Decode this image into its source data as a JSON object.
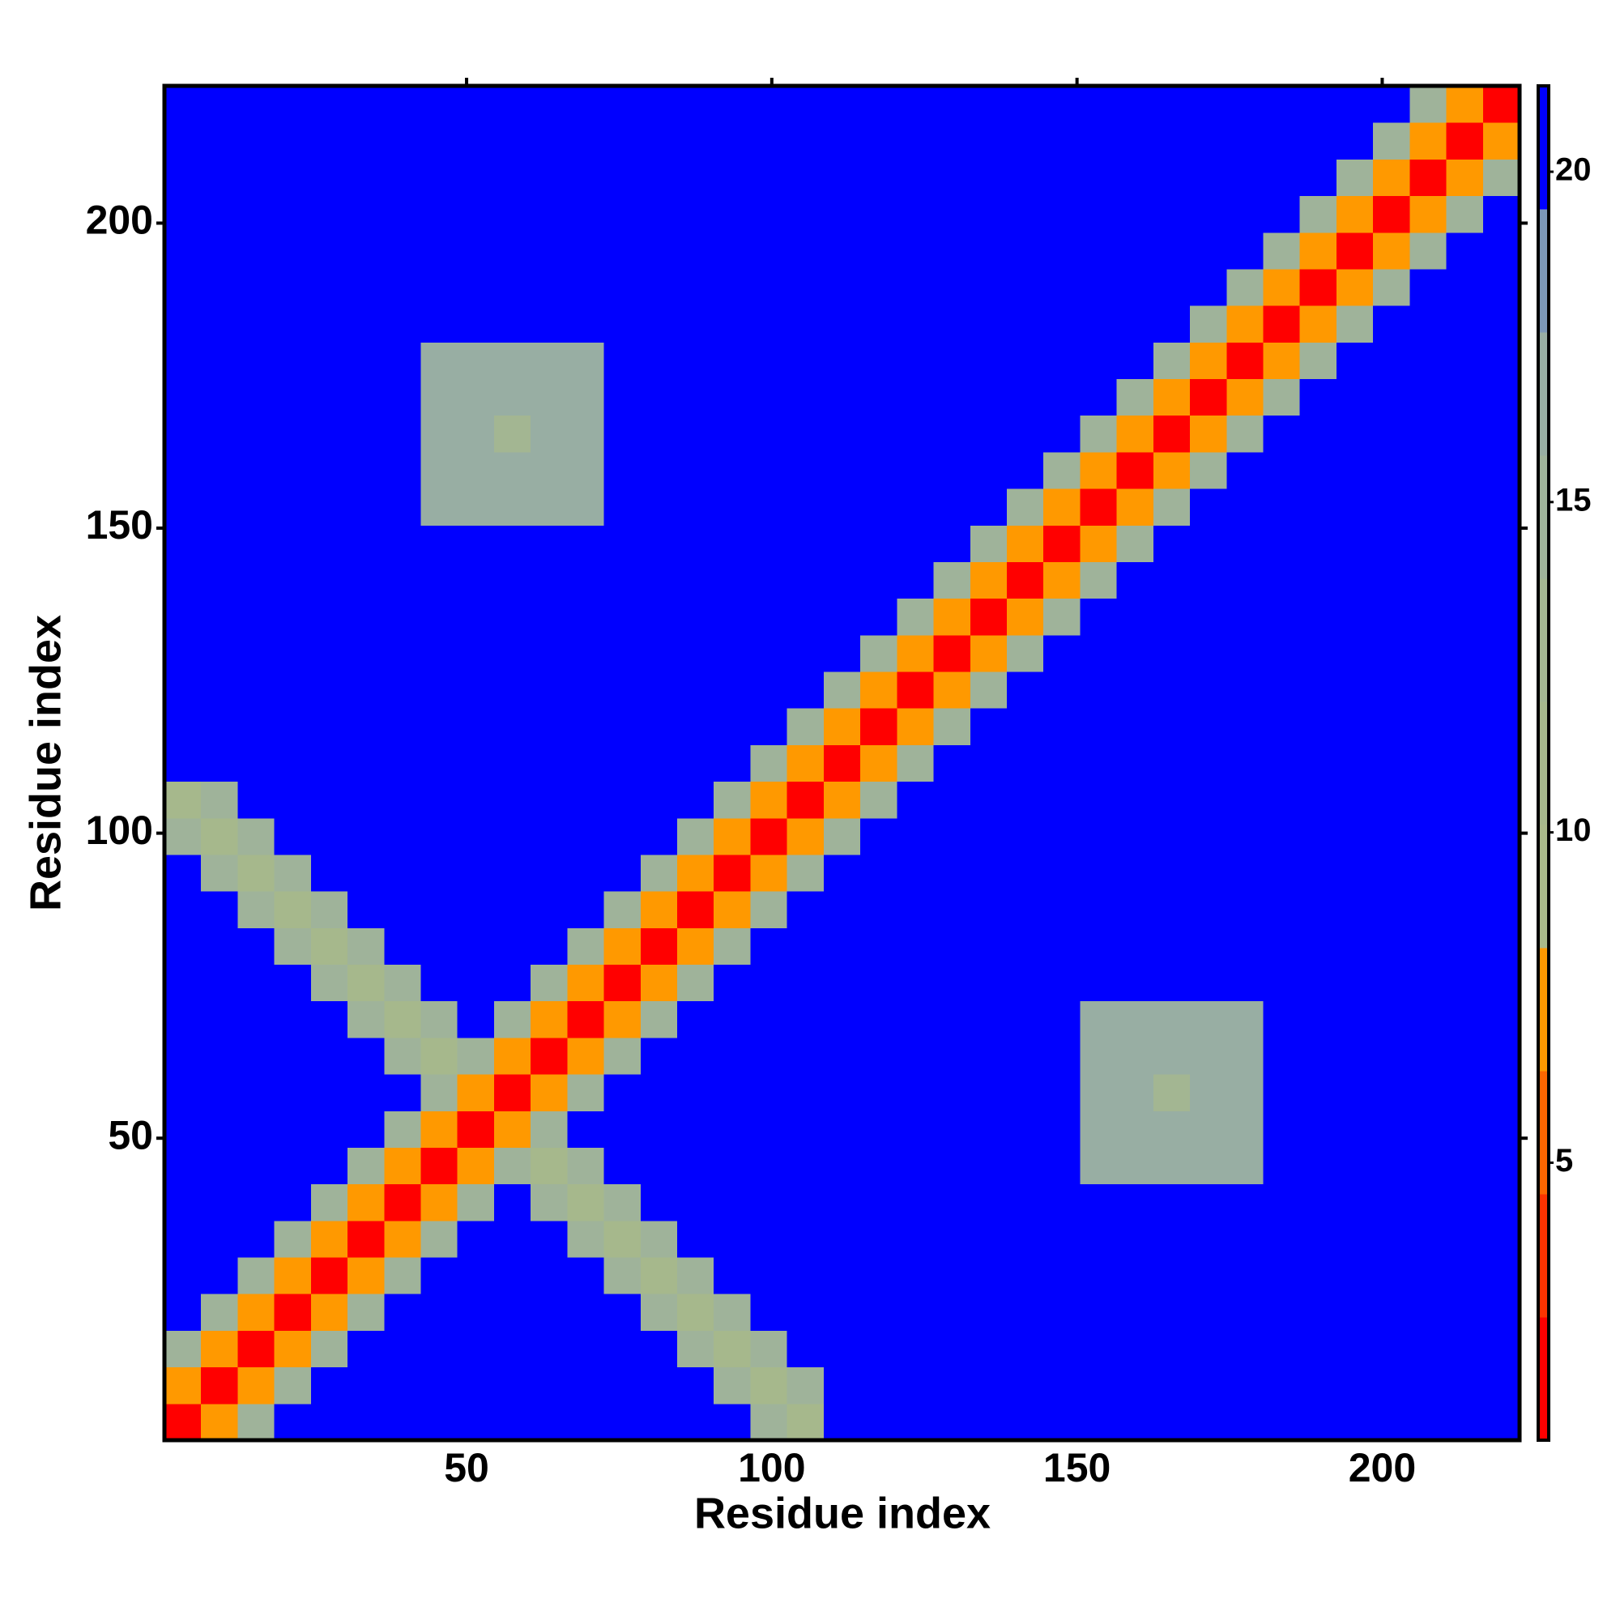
{
  "chart_data": {
    "type": "heatmap",
    "xlabel": "Residue index",
    "ylabel": "Residue index",
    "xlim": [
      0.5,
      222.5
    ],
    "ylim": [
      0.5,
      222.5
    ],
    "xticks": [
      50,
      100,
      150,
      200
    ],
    "yticks": [
      50,
      100,
      150,
      200
    ],
    "xbins": [
      0.5,
      6.5,
      12.5,
      18.5,
      24.5,
      30.5,
      36.5,
      42.5,
      48.5,
      54.5,
      60.5,
      66.5,
      72.5,
      78.5,
      84.5,
      90.5,
      96.5,
      102.5,
      108.5,
      114.5,
      120.5,
      126.5,
      132.5,
      138.5,
      144.5,
      150.5,
      156.5,
      162.5,
      168.5,
      174.5,
      180.5,
      186.5,
      192.5,
      198.5,
      204.5,
      210.5,
      216.5,
      222.5
    ],
    "ybins": [
      0.5,
      6.5,
      12.5,
      18.5,
      24.5,
      30.5,
      36.5,
      42.5,
      48.5,
      54.5,
      60.5,
      66.5,
      72.5,
      78.5,
      84.5,
      90.5,
      96.5,
      102.5,
      108.5,
      114.5,
      120.5,
      126.5,
      132.5,
      138.5,
      144.5,
      150.5,
      156.5,
      162.5,
      168.5,
      174.5,
      180.5,
      186.5,
      192.5,
      198.5,
      204.5,
      210.5,
      216.5,
      222.5
    ],
    "clim": [
      0.8,
      21.3
    ],
    "cticks": [
      5,
      10,
      15,
      20
    ],
    "colors": [
      "#ff0000",
      "#ff3300",
      "#ff6600",
      "#ff9900",
      "#a9b98a",
      "#a6b88c",
      "#a3b692",
      "#9fb39a",
      "#98aea3",
      "#7c98b8",
      "#0000ff"
    ],
    "values": [
      [
        2,
        8,
        15,
        22,
        22,
        22,
        22,
        22,
        22,
        22,
        22,
        22,
        22,
        22,
        22,
        22,
        15,
        11,
        22,
        22,
        22,
        22,
        22,
        22,
        22,
        22,
        22,
        22,
        22,
        22,
        22,
        22,
        22,
        22,
        22,
        22,
        22
      ],
      [
        8,
        2,
        8,
        15,
        22,
        22,
        22,
        22,
        22,
        22,
        22,
        22,
        22,
        22,
        22,
        15,
        11,
        15,
        22,
        22,
        22,
        22,
        22,
        22,
        22,
        22,
        22,
        22,
        22,
        22,
        22,
        22,
        22,
        22,
        22,
        22,
        22
      ],
      [
        15,
        8,
        2,
        8,
        15,
        22,
        22,
        22,
        22,
        22,
        22,
        22,
        22,
        22,
        15,
        11,
        15,
        22,
        22,
        22,
        22,
        22,
        22,
        22,
        22,
        22,
        22,
        22,
        22,
        22,
        22,
        22,
        22,
        22,
        22,
        22,
        22
      ],
      [
        22,
        15,
        8,
        2,
        8,
        15,
        22,
        22,
        22,
        22,
        22,
        22,
        22,
        15,
        11,
        15,
        22,
        22,
        22,
        22,
        22,
        22,
        22,
        22,
        22,
        22,
        22,
        22,
        22,
        22,
        22,
        22,
        22,
        22,
        22,
        22,
        22
      ],
      [
        22,
        22,
        15,
        8,
        2,
        8,
        15,
        22,
        22,
        22,
        22,
        22,
        15,
        11,
        15,
        22,
        22,
        22,
        22,
        22,
        22,
        22,
        22,
        22,
        22,
        22,
        22,
        22,
        22,
        22,
        22,
        22,
        22,
        22,
        22,
        22,
        22
      ],
      [
        22,
        22,
        22,
        15,
        8,
        2,
        8,
        15,
        22,
        22,
        22,
        15,
        11,
        15,
        22,
        22,
        22,
        22,
        22,
        22,
        22,
        22,
        22,
        22,
        22,
        22,
        22,
        22,
        22,
        22,
        22,
        22,
        22,
        22,
        22,
        22,
        22
      ],
      [
        22,
        22,
        22,
        22,
        15,
        8,
        2,
        8,
        15,
        22,
        15,
        11,
        15,
        22,
        22,
        22,
        22,
        22,
        22,
        22,
        22,
        22,
        22,
        22,
        22,
        22,
        22,
        22,
        22,
        22,
        22,
        22,
        22,
        22,
        22,
        22,
        22
      ],
      [
        22,
        22,
        22,
        22,
        22,
        15,
        8,
        2,
        8,
        15,
        11,
        15,
        22,
        22,
        22,
        22,
        22,
        22,
        22,
        22,
        22,
        22,
        22,
        22,
        22,
        16,
        16,
        16,
        16,
        16,
        22,
        22,
        22,
        22,
        22,
        22,
        22
      ],
      [
        22,
        22,
        22,
        22,
        22,
        22,
        15,
        8,
        2,
        8,
        15,
        22,
        22,
        22,
        22,
        22,
        22,
        22,
        22,
        22,
        22,
        22,
        22,
        22,
        22,
        16,
        16,
        16,
        16,
        16,
        22,
        22,
        22,
        22,
        22,
        22,
        22
      ],
      [
        22,
        22,
        22,
        22,
        22,
        22,
        22,
        15,
        8,
        2,
        8,
        15,
        22,
        22,
        22,
        22,
        22,
        22,
        22,
        22,
        22,
        22,
        22,
        22,
        22,
        16,
        16,
        12,
        16,
        16,
        22,
        22,
        22,
        22,
        22,
        22,
        22
      ],
      [
        22,
        22,
        22,
        22,
        22,
        22,
        15,
        11,
        15,
        8,
        2,
        8,
        15,
        22,
        22,
        22,
        22,
        22,
        22,
        22,
        22,
        22,
        22,
        22,
        22,
        16,
        16,
        16,
        16,
        16,
        22,
        22,
        22,
        22,
        22,
        22,
        22
      ],
      [
        22,
        22,
        22,
        22,
        22,
        15,
        11,
        15,
        22,
        15,
        8,
        2,
        8,
        15,
        22,
        22,
        22,
        22,
        22,
        22,
        22,
        22,
        22,
        22,
        22,
        16,
        16,
        16,
        16,
        16,
        22,
        22,
        22,
        22,
        22,
        22,
        22
      ],
      [
        22,
        22,
        22,
        22,
        15,
        11,
        15,
        22,
        22,
        22,
        15,
        8,
        2,
        8,
        15,
        22,
        22,
        22,
        22,
        22,
        22,
        22,
        22,
        22,
        22,
        22,
        22,
        22,
        22,
        22,
        22,
        22,
        22,
        22,
        22,
        22,
        22
      ],
      [
        22,
        22,
        22,
        15,
        11,
        15,
        22,
        22,
        22,
        22,
        22,
        15,
        8,
        2,
        8,
        15,
        22,
        22,
        22,
        22,
        22,
        22,
        22,
        22,
        22,
        22,
        22,
        22,
        22,
        22,
        22,
        22,
        22,
        22,
        22,
        22,
        22
      ],
      [
        22,
        22,
        15,
        11,
        15,
        22,
        22,
        22,
        22,
        22,
        22,
        22,
        15,
        8,
        2,
        8,
        15,
        22,
        22,
        22,
        22,
        22,
        22,
        22,
        22,
        22,
        22,
        22,
        22,
        22,
        22,
        22,
        22,
        22,
        22,
        22,
        22
      ],
      [
        22,
        15,
        11,
        15,
        22,
        22,
        22,
        22,
        22,
        22,
        22,
        22,
        22,
        15,
        8,
        2,
        8,
        15,
        22,
        22,
        22,
        22,
        22,
        22,
        22,
        22,
        22,
        22,
        22,
        22,
        22,
        22,
        22,
        22,
        22,
        22,
        22
      ],
      [
        15,
        11,
        15,
        22,
        22,
        22,
        22,
        22,
        22,
        22,
        22,
        22,
        22,
        22,
        15,
        8,
        2,
        8,
        15,
        22,
        22,
        22,
        22,
        22,
        22,
        22,
        22,
        22,
        22,
        22,
        22,
        22,
        22,
        22,
        22,
        22,
        22
      ],
      [
        11,
        15,
        22,
        22,
        22,
        22,
        22,
        22,
        22,
        22,
        22,
        22,
        22,
        22,
        22,
        15,
        8,
        2,
        8,
        15,
        22,
        22,
        22,
        22,
        22,
        22,
        22,
        22,
        22,
        22,
        22,
        22,
        22,
        22,
        22,
        22,
        22
      ],
      [
        22,
        22,
        22,
        22,
        22,
        22,
        22,
        22,
        22,
        22,
        22,
        22,
        22,
        22,
        22,
        22,
        15,
        8,
        2,
        8,
        15,
        22,
        22,
        22,
        22,
        22,
        22,
        22,
        22,
        22,
        22,
        22,
        22,
        22,
        22,
        22,
        22
      ],
      [
        22,
        22,
        22,
        22,
        22,
        22,
        22,
        22,
        22,
        22,
        22,
        22,
        22,
        22,
        22,
        22,
        22,
        15,
        8,
        2,
        8,
        15,
        22,
        22,
        22,
        22,
        22,
        22,
        22,
        22,
        22,
        22,
        22,
        22,
        22,
        22,
        22
      ],
      [
        22,
        22,
        22,
        22,
        22,
        22,
        22,
        22,
        22,
        22,
        22,
        22,
        22,
        22,
        22,
        22,
        22,
        22,
        15,
        8,
        2,
        8,
        15,
        22,
        22,
        22,
        22,
        22,
        22,
        22,
        22,
        22,
        22,
        22,
        22,
        22,
        22
      ],
      [
        22,
        22,
        22,
        22,
        22,
        22,
        22,
        22,
        22,
        22,
        22,
        22,
        22,
        22,
        22,
        22,
        22,
        22,
        22,
        15,
        8,
        2,
        8,
        15,
        22,
        22,
        22,
        22,
        22,
        22,
        22,
        22,
        22,
        22,
        22,
        22,
        22
      ],
      [
        22,
        22,
        22,
        22,
        22,
        22,
        22,
        22,
        22,
        22,
        22,
        22,
        22,
        22,
        22,
        22,
        22,
        22,
        22,
        22,
        15,
        8,
        2,
        8,
        15,
        22,
        22,
        22,
        22,
        22,
        22,
        22,
        22,
        22,
        22,
        22,
        22
      ],
      [
        22,
        22,
        22,
        22,
        22,
        22,
        22,
        22,
        22,
        22,
        22,
        22,
        22,
        22,
        22,
        22,
        22,
        22,
        22,
        22,
        22,
        15,
        8,
        2,
        8,
        15,
        22,
        22,
        22,
        22,
        22,
        22,
        22,
        22,
        22,
        22,
        22
      ],
      [
        22,
        22,
        22,
        22,
        22,
        22,
        22,
        22,
        22,
        22,
        22,
        22,
        22,
        22,
        22,
        22,
        22,
        22,
        22,
        22,
        22,
        22,
        15,
        8,
        2,
        8,
        15,
        22,
        22,
        22,
        22,
        22,
        22,
        22,
        22,
        22,
        22
      ],
      [
        22,
        22,
        22,
        22,
        22,
        22,
        22,
        16,
        16,
        16,
        16,
        16,
        22,
        22,
        22,
        22,
        22,
        22,
        22,
        22,
        22,
        22,
        22,
        15,
        8,
        2,
        8,
        15,
        22,
        22,
        22,
        22,
        22,
        22,
        22,
        22,
        22
      ],
      [
        22,
        22,
        22,
        22,
        22,
        22,
        22,
        16,
        16,
        16,
        16,
        16,
        22,
        22,
        22,
        22,
        22,
        22,
        22,
        22,
        22,
        22,
        22,
        22,
        15,
        8,
        2,
        8,
        15,
        22,
        22,
        22,
        22,
        22,
        22,
        22,
        22
      ],
      [
        22,
        22,
        22,
        22,
        22,
        22,
        22,
        16,
        16,
        12,
        16,
        16,
        22,
        22,
        22,
        22,
        22,
        22,
        22,
        22,
        22,
        22,
        22,
        22,
        22,
        15,
        8,
        2,
        8,
        15,
        22,
        22,
        22,
        22,
        22,
        22,
        22
      ],
      [
        22,
        22,
        22,
        22,
        22,
        22,
        22,
        16,
        16,
        16,
        16,
        16,
        22,
        22,
        22,
        22,
        22,
        22,
        22,
        22,
        22,
        22,
        22,
        22,
        22,
        22,
        15,
        8,
        2,
        8,
        15,
        22,
        22,
        22,
        22,
        22,
        22
      ],
      [
        22,
        22,
        22,
        22,
        22,
        22,
        22,
        16,
        16,
        16,
        16,
        16,
        22,
        22,
        22,
        22,
        22,
        22,
        22,
        22,
        22,
        22,
        22,
        22,
        22,
        22,
        22,
        15,
        8,
        2,
        8,
        15,
        22,
        22,
        22,
        22,
        22
      ],
      [
        22,
        22,
        22,
        22,
        22,
        22,
        22,
        22,
        22,
        22,
        22,
        22,
        22,
        22,
        22,
        22,
        22,
        22,
        22,
        22,
        22,
        22,
        22,
        22,
        22,
        22,
        22,
        22,
        15,
        8,
        2,
        8,
        15,
        22,
        22,
        22,
        22
      ],
      [
        22,
        22,
        22,
        22,
        22,
        22,
        22,
        22,
        22,
        22,
        22,
        22,
        22,
        22,
        22,
        22,
        22,
        22,
        22,
        22,
        22,
        22,
        22,
        22,
        22,
        22,
        22,
        22,
        22,
        15,
        8,
        2,
        8,
        15,
        22,
        22,
        22
      ],
      [
        22,
        22,
        22,
        22,
        22,
        22,
        22,
        22,
        22,
        22,
        22,
        22,
        22,
        22,
        22,
        22,
        22,
        22,
        22,
        22,
        22,
        22,
        22,
        22,
        22,
        22,
        22,
        22,
        22,
        22,
        15,
        8,
        2,
        8,
        15,
        22,
        22
      ],
      [
        22,
        22,
        22,
        22,
        22,
        22,
        22,
        22,
        22,
        22,
        22,
        22,
        22,
        22,
        22,
        22,
        22,
        22,
        22,
        22,
        22,
        22,
        22,
        22,
        22,
        22,
        22,
        22,
        22,
        22,
        22,
        15,
        8,
        2,
        8,
        15,
        22
      ],
      [
        22,
        22,
        22,
        22,
        22,
        22,
        22,
        22,
        22,
        22,
        22,
        22,
        22,
        22,
        22,
        22,
        22,
        22,
        22,
        22,
        22,
        22,
        22,
        22,
        22,
        22,
        22,
        22,
        22,
        22,
        22,
        22,
        15,
        8,
        2,
        8,
        15
      ],
      [
        22,
        22,
        22,
        22,
        22,
        22,
        22,
        22,
        22,
        22,
        22,
        22,
        22,
        22,
        22,
        22,
        22,
        22,
        22,
        22,
        22,
        22,
        22,
        22,
        22,
        22,
        22,
        22,
        22,
        22,
        22,
        22,
        22,
        15,
        8,
        2,
        8
      ],
      [
        22,
        22,
        22,
        22,
        22,
        22,
        22,
        22,
        22,
        22,
        22,
        22,
        22,
        22,
        22,
        22,
        22,
        22,
        22,
        22,
        22,
        22,
        22,
        22,
        22,
        22,
        22,
        22,
        22,
        22,
        22,
        22,
        22,
        22,
        15,
        8,
        2
      ]
    ]
  }
}
